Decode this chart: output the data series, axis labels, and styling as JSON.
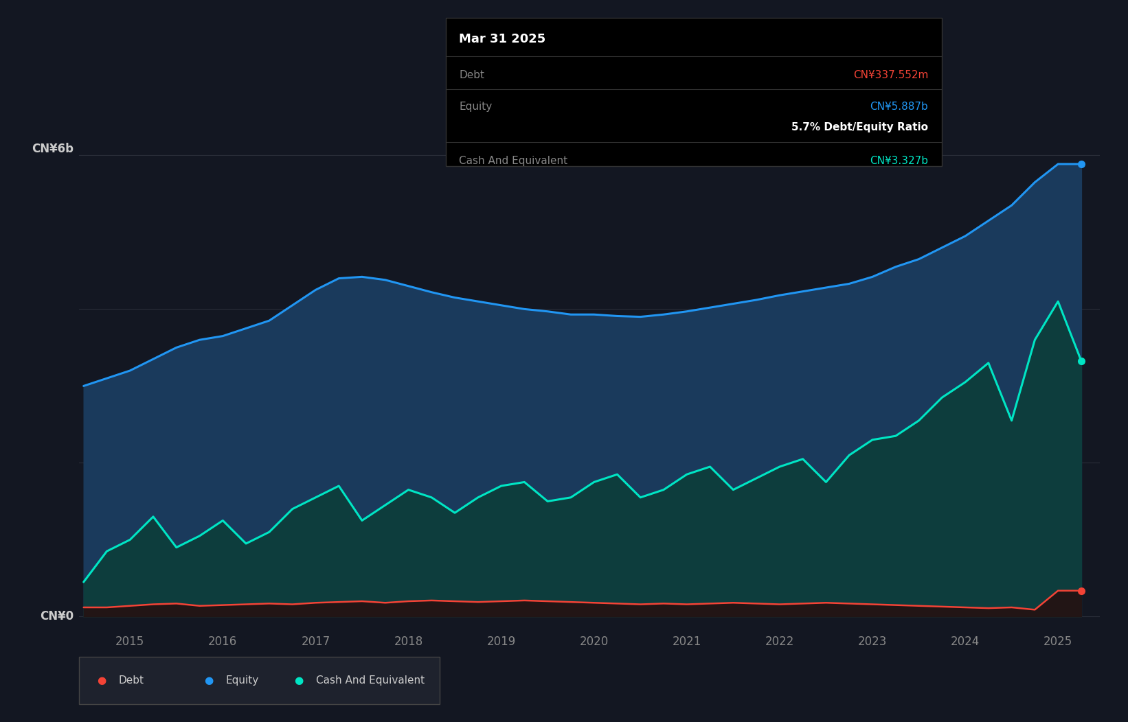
{
  "bg_color": "#131722",
  "plot_bg_color": "#131722",
  "equity_color": "#2196f3",
  "cash_color": "#00e5c4",
  "debt_color": "#f44336",
  "equity_fill": "#1a3a5c",
  "cash_fill_dark": "#0d3d3d",
  "grid_color": "#2a2e39",
  "tooltip": {
    "date": "Mar 31 2025",
    "debt_label": "Debt",
    "debt_value": "CN¥337.552m",
    "equity_label": "Equity",
    "equity_value": "CN¥5.887b",
    "ratio_text": "5.7% Debt/Equity Ratio",
    "cash_label": "Cash And Equivalent",
    "cash_value": "CN¥3.327b"
  },
  "equity_data": {
    "dates": [
      2014.5,
      2014.75,
      2015.0,
      2015.25,
      2015.5,
      2015.75,
      2016.0,
      2016.25,
      2016.5,
      2016.75,
      2017.0,
      2017.25,
      2017.5,
      2017.75,
      2018.0,
      2018.25,
      2018.5,
      2018.75,
      2019.0,
      2019.25,
      2019.5,
      2019.75,
      2020.0,
      2020.25,
      2020.5,
      2020.75,
      2021.0,
      2021.25,
      2021.5,
      2021.75,
      2022.0,
      2022.25,
      2022.5,
      2022.75,
      2023.0,
      2023.25,
      2023.5,
      2023.75,
      2024.0,
      2024.25,
      2024.5,
      2024.75,
      2025.0,
      2025.25
    ],
    "values": [
      3.0,
      3.1,
      3.2,
      3.35,
      3.5,
      3.6,
      3.65,
      3.75,
      3.85,
      4.05,
      4.25,
      4.4,
      4.42,
      4.38,
      4.3,
      4.22,
      4.15,
      4.1,
      4.05,
      4.0,
      3.97,
      3.93,
      3.93,
      3.91,
      3.9,
      3.93,
      3.97,
      4.02,
      4.07,
      4.12,
      4.18,
      4.23,
      4.28,
      4.33,
      4.42,
      4.55,
      4.65,
      4.8,
      4.95,
      5.15,
      5.35,
      5.65,
      5.887,
      5.887
    ]
  },
  "cash_data": {
    "dates": [
      2014.5,
      2014.75,
      2015.0,
      2015.25,
      2015.5,
      2015.75,
      2016.0,
      2016.25,
      2016.5,
      2016.75,
      2017.0,
      2017.25,
      2017.5,
      2017.75,
      2018.0,
      2018.25,
      2018.5,
      2018.75,
      2019.0,
      2019.25,
      2019.5,
      2019.75,
      2020.0,
      2020.25,
      2020.5,
      2020.75,
      2021.0,
      2021.25,
      2021.5,
      2021.75,
      2022.0,
      2022.25,
      2022.5,
      2022.75,
      2023.0,
      2023.25,
      2023.5,
      2023.75,
      2024.0,
      2024.25,
      2024.5,
      2024.75,
      2025.0,
      2025.25
    ],
    "values": [
      0.45,
      0.85,
      1.0,
      1.3,
      0.9,
      1.05,
      1.25,
      0.95,
      1.1,
      1.4,
      1.55,
      1.7,
      1.25,
      1.45,
      1.65,
      1.55,
      1.35,
      1.55,
      1.7,
      1.75,
      1.5,
      1.55,
      1.75,
      1.85,
      1.55,
      1.65,
      1.85,
      1.95,
      1.65,
      1.8,
      1.95,
      2.05,
      1.75,
      2.1,
      2.3,
      2.35,
      2.55,
      2.85,
      3.05,
      3.3,
      2.55,
      3.6,
      4.1,
      3.327
    ]
  },
  "debt_data": {
    "dates": [
      2014.5,
      2014.75,
      2015.0,
      2015.25,
      2015.5,
      2015.75,
      2016.0,
      2016.25,
      2016.5,
      2016.75,
      2017.0,
      2017.25,
      2017.5,
      2017.75,
      2018.0,
      2018.25,
      2018.5,
      2018.75,
      2019.0,
      2019.25,
      2019.5,
      2019.75,
      2020.0,
      2020.25,
      2020.5,
      2020.75,
      2021.0,
      2021.25,
      2021.5,
      2021.75,
      2022.0,
      2022.25,
      2022.5,
      2022.75,
      2023.0,
      2023.25,
      2023.5,
      2023.75,
      2024.0,
      2024.25,
      2024.5,
      2024.75,
      2025.0,
      2025.25
    ],
    "values": [
      0.12,
      0.12,
      0.14,
      0.16,
      0.17,
      0.14,
      0.15,
      0.16,
      0.17,
      0.16,
      0.18,
      0.19,
      0.2,
      0.18,
      0.2,
      0.21,
      0.2,
      0.19,
      0.2,
      0.21,
      0.2,
      0.19,
      0.18,
      0.17,
      0.16,
      0.17,
      0.16,
      0.17,
      0.18,
      0.17,
      0.16,
      0.17,
      0.18,
      0.17,
      0.16,
      0.15,
      0.14,
      0.13,
      0.12,
      0.11,
      0.12,
      0.09,
      0.3376,
      0.3376
    ]
  },
  "x_ticks": [
    2015,
    2016,
    2017,
    2018,
    2019,
    2020,
    2021,
    2022,
    2023,
    2024,
    2025
  ],
  "ylim_min": -0.15,
  "ylim_max": 6.8,
  "xlim_min": 2014.45,
  "xlim_max": 2025.45,
  "y6_val": 6.0,
  "y0_val": 0.0,
  "y2_val": 2.0,
  "y4_val": 4.0
}
